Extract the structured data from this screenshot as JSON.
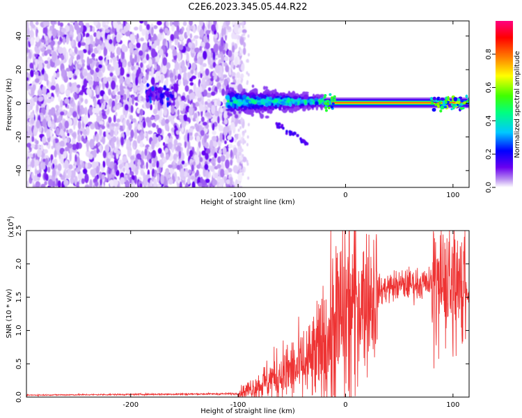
{
  "title": "C2E6.2023.345.05.44.R22",
  "chart_data": [
    {
      "type": "heatmap",
      "xlabel": "Height of straight line (km)",
      "ylabel": "Frequency (Hz)",
      "xlim": [
        -297,
        115
      ],
      "ylim": [
        -50,
        49
      ],
      "x_ticks": [
        -200,
        -100,
        0,
        100
      ],
      "y_ticks": [
        -40,
        -20,
        0,
        20,
        40
      ],
      "colorbar": {
        "label": "Normalized spectral amplitude",
        "range": [
          0,
          1
        ],
        "ticks": [
          0.0,
          0.2,
          0.4,
          0.6,
          0.8
        ],
        "colormap": [
          "#ffffff",
          "#b78cf0",
          "#6a00f0",
          "#0000ff",
          "#00c8ff",
          "#00ff80",
          "#40ff00",
          "#ffff00",
          "#ff8000",
          "#ff0000",
          "#ff0080"
        ]
      },
      "features": [
        {
          "x_range": [
            -297,
            -100
          ],
          "freq_range": [
            -50,
            49
          ],
          "amplitude": [
            0.05,
            0.2
          ]
        },
        {
          "x_range": [
            -185,
            -160
          ],
          "freq_center": 5,
          "amplitude": 0.3
        },
        {
          "x_range": [
            -110,
            -20
          ],
          "freq_center": 0,
          "freq_spread": 7,
          "amplitude": [
            0.3,
            0.5
          ]
        },
        {
          "x_range": [
            -20,
            115
          ],
          "freq_center": 0,
          "freq_spread": 1,
          "amplitude": 0.85
        },
        {
          "x_range": [
            -65,
            -35
          ],
          "freq_from": -12,
          "freq_to": -24,
          "amplitude": 0.25
        }
      ]
    },
    {
      "type": "line",
      "xlabel": "Height of straight line (km)",
      "ylabel": "SNR (10 * v/v)",
      "y_multiplier": "(x10",
      "y_exponent": "4",
      "y_multiplier_end": ")",
      "xlim": [
        -297,
        115
      ],
      "ylim": [
        0,
        25000
      ],
      "x_ticks": [
        -200,
        -100,
        0,
        100
      ],
      "y_ticks": [
        0.0,
        0.5,
        1.0,
        1.5,
        2.0,
        2.5
      ],
      "line_color": "#ee3333",
      "envelope": {
        "x": [
          -297,
          -100,
          -80,
          -60,
          -40,
          -30,
          -20,
          -10,
          0,
          10,
          20,
          40,
          60,
          80,
          90,
          100,
          110,
          115
        ],
        "y": [
          300,
          500,
          1800,
          3500,
          4500,
          5500,
          7500,
          10500,
          12500,
          14000,
          15000,
          16500,
          17000,
          17000,
          17000,
          16500,
          16000,
          15500
        ]
      }
    }
  ]
}
